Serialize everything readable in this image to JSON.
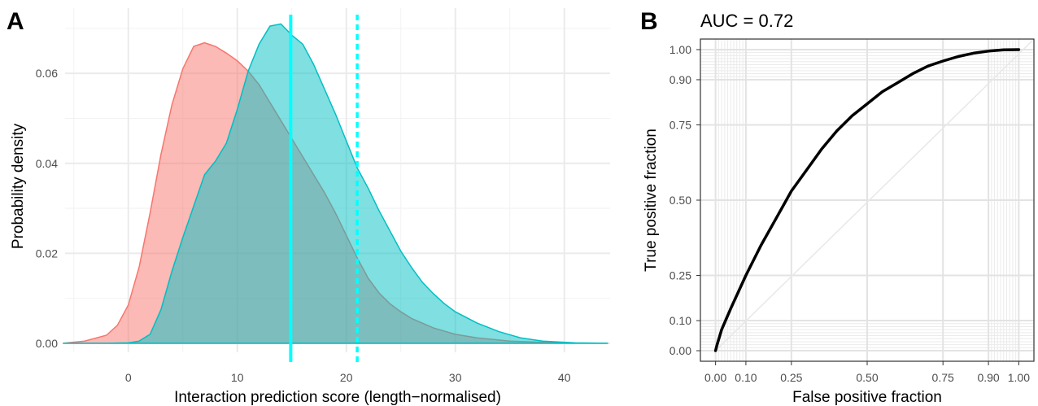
{
  "chart_data": [
    {
      "panel_label": "A",
      "type": "area",
      "xlabel": "Interaction prediction score (length−normalised)",
      "ylabel": "Probability density",
      "xlim": [
        -5.8,
        44.2
      ],
      "ylim": [
        -0.002,
        0.0745
      ],
      "x_ticks": [
        0,
        10,
        20,
        30,
        40
      ],
      "x_tick_labels": [
        "0",
        "10",
        "20",
        "30",
        "40"
      ],
      "y_ticks": [
        0.0,
        0.02,
        0.04,
        0.06
      ],
      "y_tick_labels": [
        "0.00",
        "0.02",
        "0.04",
        "0.06"
      ],
      "grid": true,
      "legend": "none",
      "series": [
        {
          "color": "#F8766D",
          "fill": "#F8766D",
          "x": [
            -6,
            -4,
            -2,
            -1,
            0,
            1,
            2,
            3,
            4,
            5,
            6,
            7,
            8,
            9,
            10,
            11,
            12,
            13,
            14,
            15,
            16,
            17,
            18,
            19,
            20,
            21,
            22,
            23,
            24,
            25,
            26,
            28,
            30,
            32,
            35,
            38,
            41,
            44
          ],
          "y": [
            0.0,
            0.0005,
            0.0018,
            0.004,
            0.0085,
            0.017,
            0.029,
            0.042,
            0.053,
            0.061,
            0.066,
            0.0668,
            0.066,
            0.0645,
            0.0628,
            0.0605,
            0.0575,
            0.0535,
            0.0495,
            0.0455,
            0.0415,
            0.0375,
            0.0335,
            0.029,
            0.024,
            0.019,
            0.0145,
            0.0112,
            0.0088,
            0.007,
            0.0055,
            0.0034,
            0.002,
            0.0012,
            0.0005,
            0.0002,
            5e-05,
            0.0
          ]
        },
        {
          "color": "#00BFC4",
          "fill": "#00BFC4",
          "x": [
            -6,
            -2,
            0,
            1,
            2,
            3,
            4,
            5,
            6,
            7,
            8,
            9,
            10,
            11,
            12,
            13,
            14,
            15,
            16,
            17,
            18,
            19,
            20,
            21,
            22,
            23,
            24,
            25,
            26,
            27,
            28,
            29,
            30,
            32,
            34,
            36,
            38,
            41,
            44
          ],
          "y": [
            0.0,
            0.0,
            0.0001,
            0.0005,
            0.002,
            0.0075,
            0.016,
            0.0235,
            0.0305,
            0.0375,
            0.0405,
            0.0445,
            0.052,
            0.0605,
            0.0665,
            0.0705,
            0.071,
            0.0685,
            0.0665,
            0.062,
            0.0565,
            0.051,
            0.045,
            0.039,
            0.0345,
            0.0295,
            0.025,
            0.0205,
            0.0168,
            0.0135,
            0.011,
            0.0088,
            0.007,
            0.0045,
            0.0026,
            0.0012,
            0.0005,
            0.0001,
            0.0
          ]
        }
      ],
      "vlines": [
        {
          "x": 14.9,
          "color": "#00FFFF",
          "linetype": "solid"
        },
        {
          "x": 21.0,
          "color": "#00FFFF",
          "linetype": "dashed"
        }
      ]
    },
    {
      "panel_label": "B",
      "type": "line",
      "annotation": "AUC = 0.72",
      "xlabel": "False positive fraction",
      "ylabel": "True positive fraction",
      "xlim": [
        -0.05,
        1.05
      ],
      "ylim": [
        -0.035,
        1.035
      ],
      "x_ticks": [
        0.0,
        0.1,
        0.25,
        0.5,
        0.75,
        0.9,
        1.0
      ],
      "x_tick_labels": [
        "0.00",
        "0.10",
        "0.25",
        "0.50",
        "0.75",
        "0.90",
        "1.00"
      ],
      "y_ticks": [
        0.0,
        0.1,
        0.25,
        0.5,
        0.75,
        0.9,
        1.0
      ],
      "y_tick_labels": [
        "0.00",
        "0.10",
        "0.25",
        "0.50",
        "0.75",
        "0.90",
        "1.00"
      ],
      "minor_grid_x": [
        0.01,
        0.02,
        0.03,
        0.04,
        0.05,
        0.06,
        0.07,
        0.08,
        0.09,
        0.91,
        0.92,
        0.93,
        0.94,
        0.95,
        0.96,
        0.97,
        0.98,
        0.99
      ],
      "minor_grid_y": [
        0.01,
        0.02,
        0.03,
        0.04,
        0.05,
        0.06,
        0.07,
        0.08,
        0.09,
        0.91,
        0.92,
        0.93,
        0.94,
        0.95,
        0.96,
        0.97,
        0.98,
        0.99
      ],
      "grid": true,
      "diagonal": {
        "from": [
          0,
          0
        ],
        "to": [
          1,
          1
        ],
        "color": "#e8e8e8"
      },
      "series": [
        {
          "color": "#000000",
          "x": [
            0.0,
            0.005,
            0.02,
            0.05,
            0.1,
            0.15,
            0.2,
            0.25,
            0.3,
            0.35,
            0.4,
            0.45,
            0.5,
            0.55,
            0.6,
            0.65,
            0.7,
            0.75,
            0.8,
            0.85,
            0.9,
            0.95,
            1.0
          ],
          "y": [
            0.0,
            0.02,
            0.07,
            0.14,
            0.25,
            0.35,
            0.44,
            0.53,
            0.6,
            0.67,
            0.73,
            0.78,
            0.82,
            0.86,
            0.89,
            0.92,
            0.945,
            0.962,
            0.977,
            0.988,
            0.995,
            0.999,
            1.0
          ]
        }
      ]
    }
  ]
}
